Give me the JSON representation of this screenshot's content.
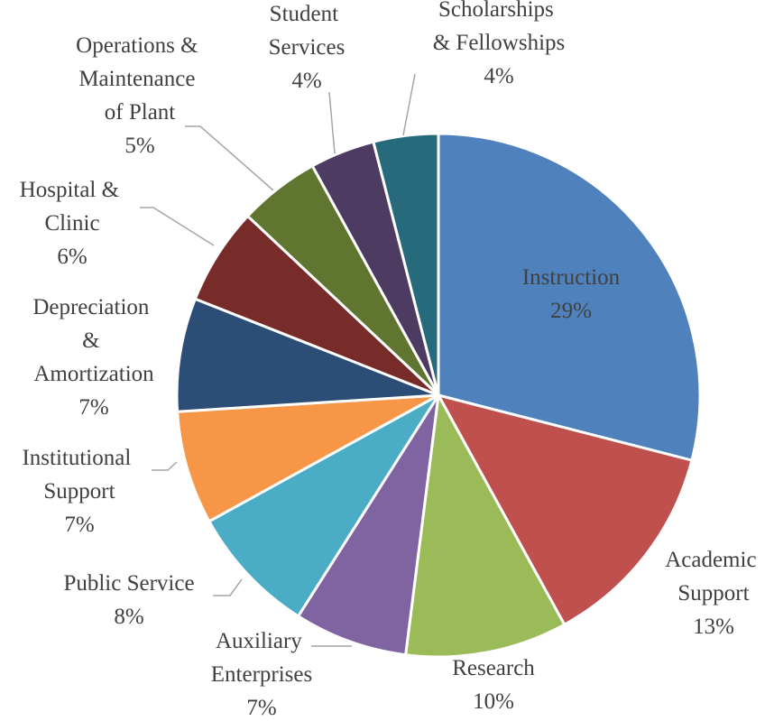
{
  "chart_data": {
    "type": "pie",
    "categories": [
      "Instruction",
      "Academic Support",
      "Research",
      "Auxiliary Enterprises",
      "Public Service",
      "Institutional Support",
      "Depreciation & Amortization",
      "Hospital & Clinic",
      "Operations & Maintenance of Plant",
      "Student Services",
      "Scholarships & Fellowships"
    ],
    "values": [
      29,
      13,
      10,
      7,
      8,
      7,
      7,
      6,
      5,
      4,
      4
    ],
    "value_labels": [
      "29%",
      "13%",
      "10%",
      "7%",
      "8%",
      "7%",
      "7%",
      "6%",
      "5%",
      "4%",
      "4%"
    ],
    "colors": [
      "#4f81bd",
      "#c0504d",
      "#9bbb59",
      "#8064a2",
      "#4bacc6",
      "#f79646",
      "#2c4d75",
      "#772c2a",
      "#5f7530",
      "#4d3b62",
      "#276a7c"
    ]
  }
}
